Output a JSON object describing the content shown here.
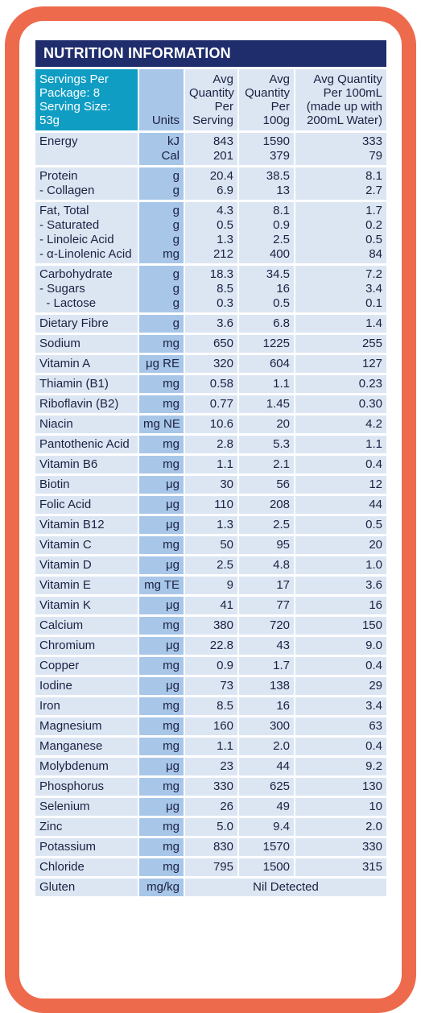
{
  "title": "NUTRITION INFORMATION",
  "header": {
    "serving_info_1": "Servings Per Package: 8",
    "serving_info_2": "Serving Size: 53g",
    "units": "Units",
    "per_serving": [
      "Avg",
      "Quantity",
      "Per",
      "Serving"
    ],
    "per_100g": [
      "Avg",
      "Quantity",
      "Per",
      "100g"
    ],
    "per_100ml": [
      "Avg Quantity",
      "Per 100mL",
      "(made up with",
      "200mL Water)"
    ]
  },
  "rows": [
    {
      "names": [
        "Energy",
        ""
      ],
      "units": [
        "kJ",
        "Cal"
      ],
      "serving": [
        "843",
        "201"
      ],
      "g100": [
        "1590",
        "379"
      ],
      "ml100": [
        "333",
        "79"
      ]
    },
    {
      "names": [
        "Protein",
        "- Collagen"
      ],
      "units": [
        "g",
        "g"
      ],
      "serving": [
        "20.4",
        "6.9"
      ],
      "g100": [
        "38.5",
        "13"
      ],
      "ml100": [
        "8.1",
        "2.7"
      ]
    },
    {
      "names": [
        "Fat, Total",
        "- Saturated",
        "- Linoleic Acid",
        "- α-Linolenic Acid"
      ],
      "units": [
        "g",
        "g",
        "g",
        "mg"
      ],
      "serving": [
        "4.3",
        "0.5",
        "1.3",
        "212"
      ],
      "g100": [
        "8.1",
        "0.9",
        "2.5",
        "400"
      ],
      "ml100": [
        "1.7",
        "0.2",
        "0.5",
        "84"
      ]
    },
    {
      "names": [
        "Carbohydrate",
        "- Sugars",
        "  - Lactose"
      ],
      "units": [
        "g",
        "g",
        "g"
      ],
      "serving": [
        "18.3",
        "8.5",
        "0.3"
      ],
      "g100": [
        "34.5",
        "16",
        "0.5"
      ],
      "ml100": [
        "7.2",
        "3.4",
        "0.1"
      ]
    },
    {
      "names": [
        "Dietary Fibre"
      ],
      "units": [
        "g"
      ],
      "serving": [
        "3.6"
      ],
      "g100": [
        "6.8"
      ],
      "ml100": [
        "1.4"
      ]
    },
    {
      "names": [
        "Sodium"
      ],
      "units": [
        "mg"
      ],
      "serving": [
        "650"
      ],
      "g100": [
        "1225"
      ],
      "ml100": [
        "255"
      ]
    },
    {
      "names": [
        "Vitamin A"
      ],
      "units": [
        "μg RE"
      ],
      "serving": [
        "320"
      ],
      "g100": [
        "604"
      ],
      "ml100": [
        "127"
      ]
    },
    {
      "names": [
        "Thiamin (B1)"
      ],
      "units": [
        "mg"
      ],
      "serving": [
        "0.58"
      ],
      "g100": [
        "1.1"
      ],
      "ml100": [
        "0.23"
      ]
    },
    {
      "names": [
        "Riboflavin (B2)"
      ],
      "units": [
        "mg"
      ],
      "serving": [
        "0.77"
      ],
      "g100": [
        "1.45"
      ],
      "ml100": [
        "0.30"
      ]
    },
    {
      "names": [
        "Niacin"
      ],
      "units": [
        "mg NE"
      ],
      "serving": [
        "10.6"
      ],
      "g100": [
        "20"
      ],
      "ml100": [
        "4.2"
      ]
    },
    {
      "names": [
        "Pantothenic Acid"
      ],
      "units": [
        "mg"
      ],
      "serving": [
        "2.8"
      ],
      "g100": [
        "5.3"
      ],
      "ml100": [
        "1.1"
      ]
    },
    {
      "names": [
        "Vitamin B6"
      ],
      "units": [
        "mg"
      ],
      "serving": [
        "1.1"
      ],
      "g100": [
        "2.1"
      ],
      "ml100": [
        "0.4"
      ]
    },
    {
      "names": [
        "Biotin"
      ],
      "units": [
        "μg"
      ],
      "serving": [
        "30"
      ],
      "g100": [
        "56"
      ],
      "ml100": [
        "12"
      ]
    },
    {
      "names": [
        "Folic Acid"
      ],
      "units": [
        "μg"
      ],
      "serving": [
        "110"
      ],
      "g100": [
        "208"
      ],
      "ml100": [
        "44"
      ]
    },
    {
      "names": [
        "Vitamin B12"
      ],
      "units": [
        "μg"
      ],
      "serving": [
        "1.3"
      ],
      "g100": [
        "2.5"
      ],
      "ml100": [
        "0.5"
      ]
    },
    {
      "names": [
        "Vitamin C"
      ],
      "units": [
        "mg"
      ],
      "serving": [
        "50"
      ],
      "g100": [
        "95"
      ],
      "ml100": [
        "20"
      ]
    },
    {
      "names": [
        "Vitamin D"
      ],
      "units": [
        "μg"
      ],
      "serving": [
        "2.5"
      ],
      "g100": [
        "4.8"
      ],
      "ml100": [
        "1.0"
      ]
    },
    {
      "names": [
        "Vitamin E"
      ],
      "units": [
        "mg TE"
      ],
      "serving": [
        "9"
      ],
      "g100": [
        "17"
      ],
      "ml100": [
        "3.6"
      ]
    },
    {
      "names": [
        "Vitamin K"
      ],
      "units": [
        "μg"
      ],
      "serving": [
        "41"
      ],
      "g100": [
        "77"
      ],
      "ml100": [
        "16"
      ]
    },
    {
      "names": [
        "Calcium"
      ],
      "units": [
        "mg"
      ],
      "serving": [
        "380"
      ],
      "g100": [
        "720"
      ],
      "ml100": [
        "150"
      ]
    },
    {
      "names": [
        "Chromium"
      ],
      "units": [
        "μg"
      ],
      "serving": [
        "22.8"
      ],
      "g100": [
        "43"
      ],
      "ml100": [
        "9.0"
      ]
    },
    {
      "names": [
        "Copper"
      ],
      "units": [
        "mg"
      ],
      "serving": [
        "0.9"
      ],
      "g100": [
        "1.7"
      ],
      "ml100": [
        "0.4"
      ]
    },
    {
      "names": [
        "Iodine"
      ],
      "units": [
        "μg"
      ],
      "serving": [
        "73"
      ],
      "g100": [
        "138"
      ],
      "ml100": [
        "29"
      ]
    },
    {
      "names": [
        "Iron"
      ],
      "units": [
        "mg"
      ],
      "serving": [
        "8.5"
      ],
      "g100": [
        "16"
      ],
      "ml100": [
        "3.4"
      ]
    },
    {
      "names": [
        "Magnesium"
      ],
      "units": [
        "mg"
      ],
      "serving": [
        "160"
      ],
      "g100": [
        "300"
      ],
      "ml100": [
        "63"
      ]
    },
    {
      "names": [
        "Manganese"
      ],
      "units": [
        "mg"
      ],
      "serving": [
        "1.1"
      ],
      "g100": [
        "2.0"
      ],
      "ml100": [
        "0.4"
      ]
    },
    {
      "names": [
        "Molybdenum"
      ],
      "units": [
        "μg"
      ],
      "serving": [
        "23"
      ],
      "g100": [
        "44"
      ],
      "ml100": [
        "9.2"
      ]
    },
    {
      "names": [
        "Phosphorus"
      ],
      "units": [
        "mg"
      ],
      "serving": [
        "330"
      ],
      "g100": [
        "625"
      ],
      "ml100": [
        "130"
      ]
    },
    {
      "names": [
        "Selenium"
      ],
      "units": [
        "μg"
      ],
      "serving": [
        "26"
      ],
      "g100": [
        "49"
      ],
      "ml100": [
        "10"
      ]
    },
    {
      "names": [
        "Zinc"
      ],
      "units": [
        "mg"
      ],
      "serving": [
        "5.0"
      ],
      "g100": [
        "9.4"
      ],
      "ml100": [
        "2.0"
      ]
    },
    {
      "names": [
        "Potassium"
      ],
      "units": [
        "mg"
      ],
      "serving": [
        "830"
      ],
      "g100": [
        "1570"
      ],
      "ml100": [
        "330"
      ]
    },
    {
      "names": [
        "Chloride"
      ],
      "units": [
        "mg"
      ],
      "serving": [
        "795"
      ],
      "g100": [
        "1500"
      ],
      "ml100": [
        "315"
      ]
    }
  ],
  "gluten": {
    "name": "Gluten",
    "units": "mg/kg",
    "value": "Nil Detected"
  },
  "colors": {
    "border": "#ed6a4c",
    "title_bg": "#1f2d6c",
    "serving_bg": "#0f9dc4",
    "units_bg": "#a8c6e8",
    "cell_bg": "#dce6f3"
  }
}
